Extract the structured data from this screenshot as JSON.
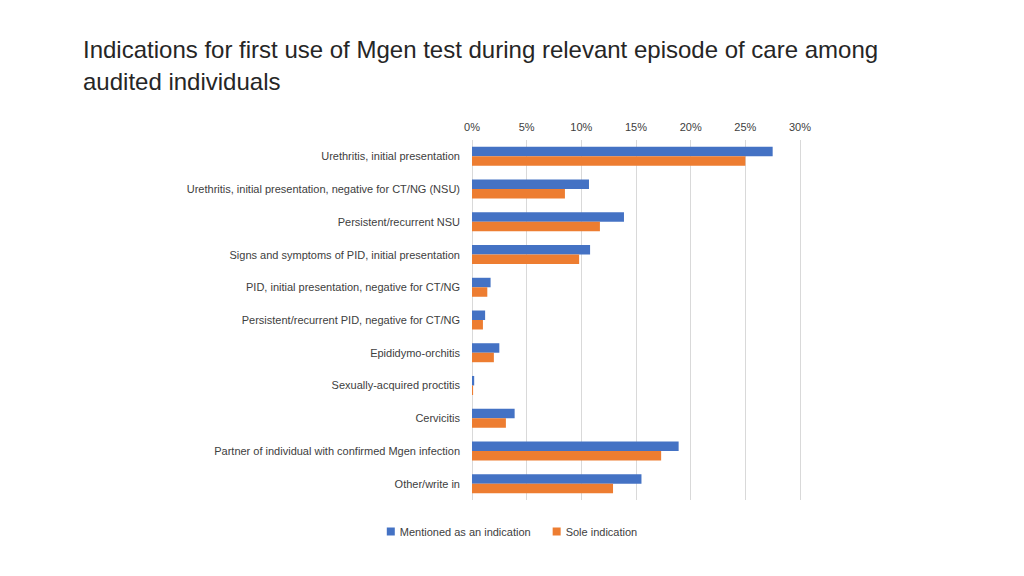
{
  "chart_data": {
    "type": "bar",
    "orientation": "horizontal",
    "title": "Indications for first use of Mgen test during relevant episode of care among audited individuals",
    "categories": [
      "Urethritis, initial presentation",
      "Urethritis, initial presentation, negative for CT/NG (NSU)",
      "Persistent/recurrent NSU",
      "Signs and symptoms of PID, initial presentation",
      "PID, initial presentation, negative for CT/NG",
      "Persistent/recurrent PID, negative for CT/NG",
      "Epididymo-orchitis",
      "Sexually-acquired proctitis",
      "Cervicitis",
      "Partner of individual with confirmed Mgen infection",
      "Other/write in"
    ],
    "series": [
      {
        "name": "Mentioned as an indication",
        "color": "#4472c4",
        "values": [
          27.5,
          10.7,
          13.9,
          10.8,
          1.7,
          1.2,
          2.5,
          0.2,
          3.9,
          18.9,
          15.5
        ]
      },
      {
        "name": "Sole indication",
        "color": "#ed7d31",
        "values": [
          25.0,
          8.5,
          11.7,
          9.8,
          1.4,
          1.0,
          2.0,
          0.1,
          3.1,
          17.3,
          12.9
        ]
      }
    ],
    "xlim": [
      0,
      30
    ],
    "xticks": [
      {
        "value": 0,
        "label": "0%"
      },
      {
        "value": 5,
        "label": "5%"
      },
      {
        "value": 10,
        "label": "10%"
      },
      {
        "value": 15,
        "label": "15%"
      },
      {
        "value": 20,
        "label": "20%"
      },
      {
        "value": 25,
        "label": "25%"
      },
      {
        "value": 30,
        "label": "30%"
      }
    ],
    "grid": true,
    "legend": "bottom"
  }
}
